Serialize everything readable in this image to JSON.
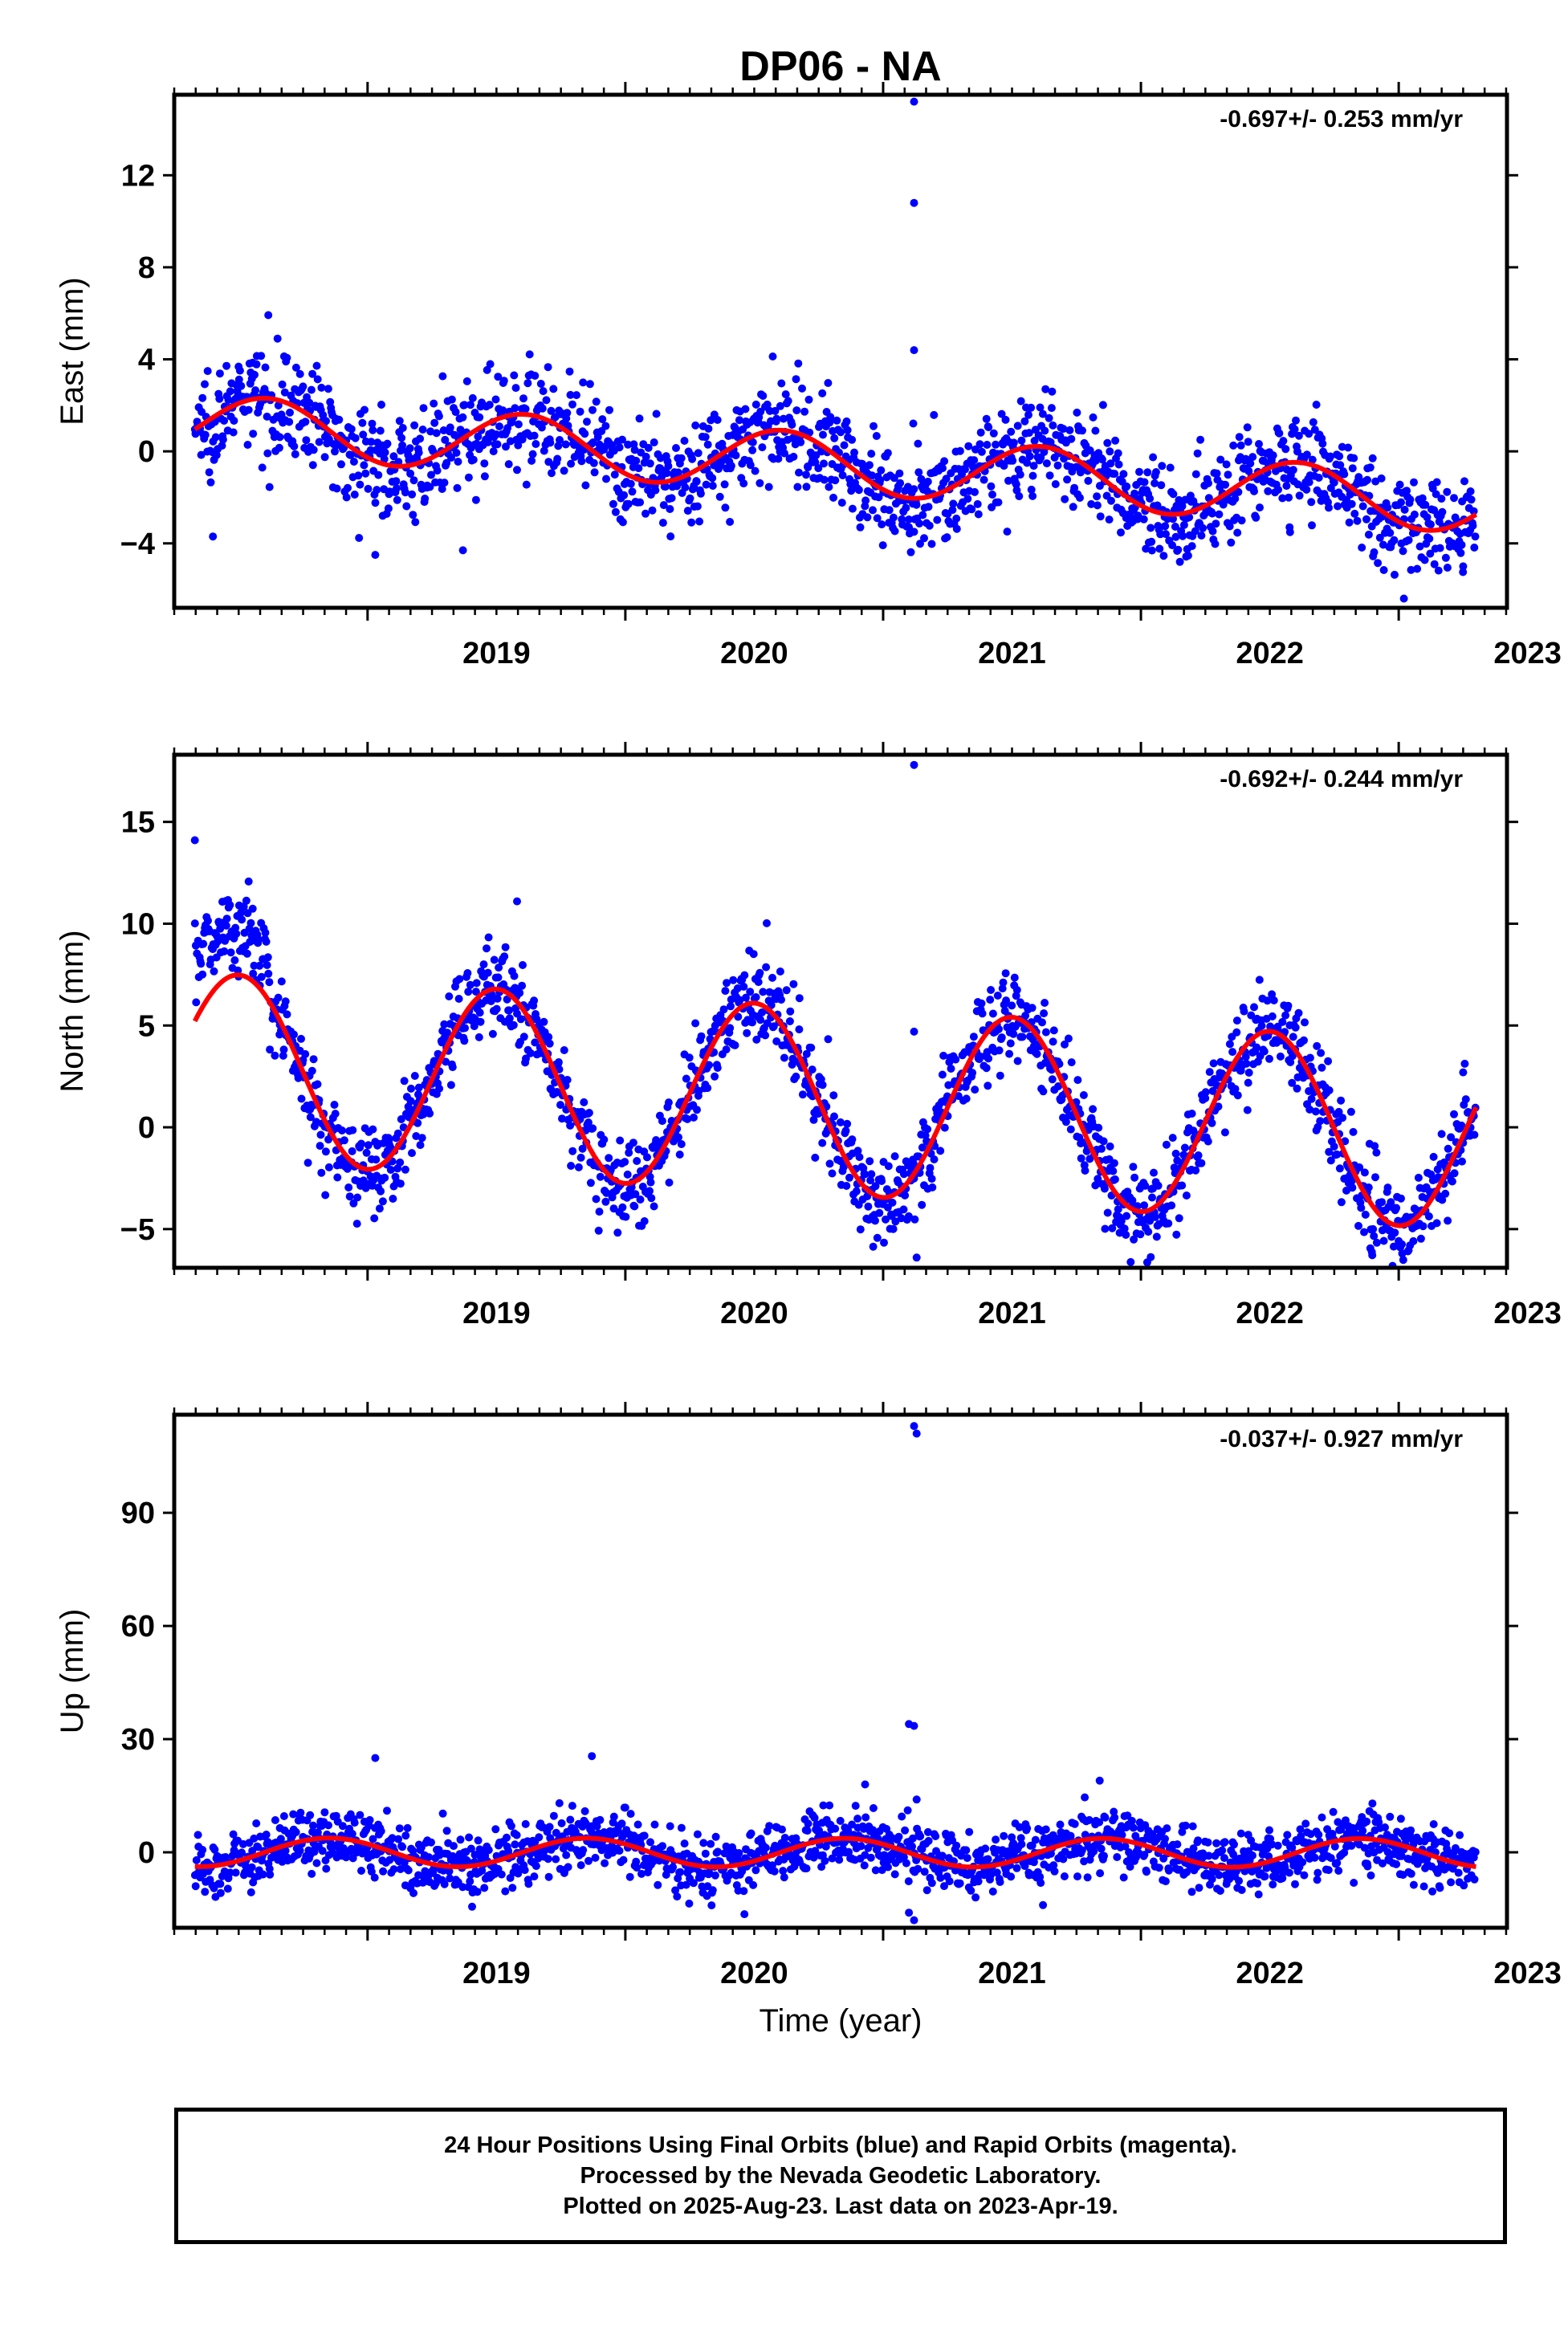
{
  "title": "DP06 - NA",
  "footer": {
    "line1": "24 Hour Positions Using Final Orbits (blue) and Rapid Orbits (magenta).",
    "line2": "Processed by the Nevada Geodetic Laboratory.",
    "line3": "Plotted on 2025-Aug-23. Last data on 2023-Apr-19."
  },
  "colors": {
    "final_orbits": "#0000ff",
    "model_fit": "#ff0000",
    "frame": "#000000"
  },
  "chart_data": [
    {
      "id": "east",
      "type": "scatter",
      "ylabel": "East (mm)",
      "xlabel": "",
      "rate_label": "-0.697+/- 0.253 mm/yr",
      "xlim": [
        2018.25,
        2023.42
      ],
      "ylim": [
        -6.8,
        15.5
      ],
      "y_ticks": [
        -4,
        0,
        4,
        8,
        12
      ],
      "x_ticks": [
        2019,
        2020,
        2021,
        2022,
        2023
      ],
      "data_range": [
        2018.33,
        2023.3
      ],
      "model": {
        "t0": 2018.33,
        "offset": 1.2,
        "rate": -0.697,
        "amp_annual": 1.3,
        "phase_annual": 2018.61,
        "amp_semi": 0.0,
        "phase_semi": 2018.5
      },
      "scatter_sigma": 1.1,
      "outliers": [
        {
          "x": 2021.12,
          "y": 15.2
        },
        {
          "x": 2021.12,
          "y": 10.8
        },
        {
          "x": 2021.12,
          "y": 4.4
        },
        {
          "x": 2018.4,
          "y": -3.7
        },
        {
          "x": 2019.03,
          "y": -4.5
        },
        {
          "x": 2019.37,
          "y": -4.3
        },
        {
          "x": 2021.12,
          "y": -3.5
        },
        {
          "x": 2021.1,
          "y": -3.3
        },
        {
          "x": 2023.02,
          "y": -6.4
        },
        {
          "x": 2023.25,
          "y": -5.0
        }
      ]
    },
    {
      "id": "north",
      "type": "scatter",
      "ylabel": "North (mm)",
      "xlabel": "",
      "rate_label": "-0.692+/- 0.244 mm/yr",
      "xlim": [
        2018.25,
        2023.42
      ],
      "ylim": [
        -6.9,
        18.3
      ],
      "y_ticks": [
        -5,
        0,
        5,
        10,
        15
      ],
      "x_ticks": [
        2019,
        2020,
        2021,
        2022,
        2023
      ],
      "data_range": [
        2018.33,
        2023.3
      ],
      "model": {
        "t0": 2018.33,
        "offset": 3.0,
        "rate": -0.692,
        "amp_annual": 4.6,
        "phase_annual": 2018.5,
        "amp_semi": 0.0,
        "phase_semi": 2018.5
      },
      "scatter_sigma": 1.1,
      "early_bias": {
        "until": 2018.62,
        "delta": 3.0
      },
      "outliers": [
        {
          "x": 2021.12,
          "y": 17.8
        },
        {
          "x": 2018.33,
          "y": 14.1
        },
        {
          "x": 2019.58,
          "y": 11.1
        },
        {
          "x": 2021.12,
          "y": 4.7
        },
        {
          "x": 2021.13,
          "y": -6.4
        },
        {
          "x": 2023.25,
          "y": 2.7
        }
      ]
    },
    {
      "id": "up",
      "type": "scatter",
      "ylabel": "Up (mm)",
      "xlabel": "Time (year)",
      "rate_label": "-0.037+/- 0.927 mm/yr",
      "xlim": [
        2018.25,
        2023.42
      ],
      "ylim": [
        -20,
        116
      ],
      "y_ticks": [
        0,
        30,
        60,
        90
      ],
      "x_ticks": [
        2019,
        2020,
        2021,
        2022,
        2023
      ],
      "data_range": [
        2018.33,
        2023.3
      ],
      "model": {
        "t0": 2018.33,
        "offset": 0.0,
        "rate": -0.037,
        "amp_annual": 3.8,
        "phase_annual": 2018.85,
        "amp_semi": 0.0,
        "phase_semi": 2018.5
      },
      "scatter_sigma": 4.0,
      "outliers": [
        {
          "x": 2021.12,
          "y": 113
        },
        {
          "x": 2021.13,
          "y": 111
        },
        {
          "x": 2021.1,
          "y": 34
        },
        {
          "x": 2021.12,
          "y": 33.5
        },
        {
          "x": 2019.03,
          "y": 25
        },
        {
          "x": 2019.87,
          "y": 25.5
        },
        {
          "x": 2021.84,
          "y": 19
        },
        {
          "x": 2020.93,
          "y": 18
        },
        {
          "x": 2021.13,
          "y": 14
        },
        {
          "x": 2021.12,
          "y": -18
        },
        {
          "x": 2021.1,
          "y": -16
        },
        {
          "x": 2021.62,
          "y": -14
        }
      ]
    }
  ]
}
